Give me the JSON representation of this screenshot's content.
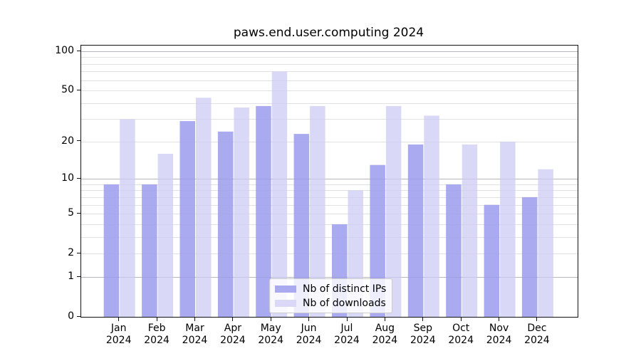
{
  "chart_data": {
    "type": "bar",
    "title": "paws.end.user.computing 2024",
    "x_year": "2024",
    "categories": [
      "Jan",
      "Feb",
      "Mar",
      "Apr",
      "May",
      "Jun",
      "Jul",
      "Aug",
      "Sep",
      "Oct",
      "Nov",
      "Dec"
    ],
    "series": [
      {
        "name": "Nb of distinct IPs",
        "color": "#aaaaf1",
        "values": [
          9,
          9,
          29,
          24,
          38,
          23,
          4,
          13,
          19,
          9,
          6,
          7
        ]
      },
      {
        "name": "Nb of downloads",
        "color": "#d9d9f7",
        "values": [
          30,
          16,
          44,
          37,
          70,
          38,
          8,
          38,
          32,
          19,
          20,
          12
        ]
      }
    ],
    "yscale": "log1p",
    "yticks": [
      0,
      1,
      2,
      5,
      10,
      20,
      50,
      100
    ],
    "ylim": [
      0,
      110
    ],
    "xlabel": "",
    "ylabel": "",
    "grid": true,
    "legend_position": "lower center",
    "colors": {
      "axis": "#111111",
      "major_grid": "#c6c6c6",
      "minor_grid": "#ebebeb",
      "background": "#ffffff"
    }
  }
}
